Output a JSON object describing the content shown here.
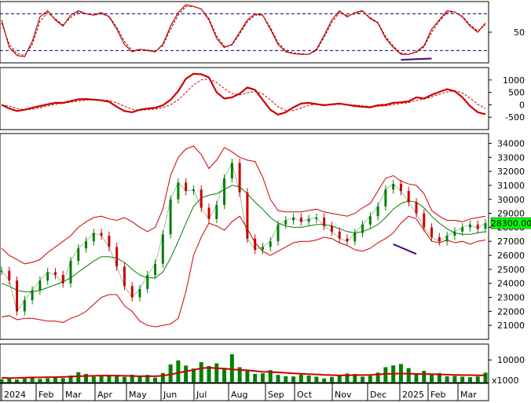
{
  "chart_data": [
    {
      "type": "line",
      "panel": "stochastic",
      "ylim": [
        0,
        100
      ],
      "ticks": [
        "50"
      ],
      "reference_lines": [
        80,
        20
      ],
      "series": [
        {
          "values": [
            70,
            25,
            12,
            10,
            35,
            75,
            85,
            70,
            60,
            78,
            85,
            80,
            78,
            82,
            75,
            55,
            30,
            18,
            22,
            20,
            18,
            30,
            60,
            82,
            95,
            92,
            88,
            70,
            40,
            25,
            30,
            50,
            70,
            80,
            78,
            55,
            30,
            18,
            15,
            14,
            14,
            22,
            45,
            70,
            85,
            75,
            82,
            85,
            72,
            65,
            40,
            25,
            14,
            14,
            18,
            28,
            55,
            70,
            85,
            83,
            75,
            60,
            50,
            65
          ]
        },
        {
          "values": [
            65,
            30,
            15,
            12,
            30,
            68,
            82,
            72,
            62,
            74,
            83,
            80,
            78,
            80,
            76,
            58,
            35,
            20,
            22,
            21,
            19,
            28,
            55,
            78,
            92,
            92,
            88,
            72,
            44,
            27,
            29,
            47,
            67,
            78,
            78,
            58,
            33,
            20,
            16,
            15,
            14,
            20,
            42,
            66,
            82,
            77,
            80,
            84,
            74,
            66,
            43,
            27,
            16,
            14,
            17,
            26,
            50,
            68,
            82,
            83,
            76,
            62,
            52,
            62
          ]
        }
      ],
      "colors": {
        "main": "#cc0000",
        "signal": "#7a0000",
        "ref": "#00008b"
      },
      "annotation": {
        "type": "divergence",
        "color": "#4b0082"
      }
    },
    {
      "type": "line",
      "panel": "macd",
      "ylim": [
        -1000,
        1500
      ],
      "ticks": [
        "1000",
        "500",
        "0",
        "-500"
      ],
      "series": [
        {
          "values": [
            0,
            -150,
            -250,
            -200,
            -120,
            -50,
            20,
            80,
            80,
            150,
            220,
            230,
            210,
            180,
            120,
            -80,
            -250,
            -300,
            -200,
            -150,
            -120,
            -20,
            200,
            550,
            1050,
            1250,
            1230,
            1100,
            500,
            250,
            300,
            450,
            700,
            600,
            200,
            -200,
            -400,
            -300,
            -100,
            50,
            80,
            30,
            -20,
            20,
            50,
            0,
            -50,
            -80,
            -100,
            -20,
            0,
            80,
            100,
            140,
            300,
            250,
            400,
            520,
            630,
            550,
            300,
            -50,
            -300,
            -380
          ]
        },
        {
          "values": [
            0,
            -50,
            -150,
            -200,
            -180,
            -120,
            -40,
            20,
            60,
            100,
            150,
            190,
            205,
            200,
            175,
            80,
            -60,
            -180,
            -220,
            -200,
            -170,
            -110,
            0,
            200,
            500,
            800,
            1000,
            1050,
            900,
            650,
            450,
            400,
            480,
            540,
            440,
            200,
            -80,
            -230,
            -230,
            -130,
            -20,
            20,
            10,
            5,
            15,
            10,
            -10,
            -40,
            -70,
            -60,
            -40,
            10,
            50,
            90,
            180,
            230,
            320,
            420,
            520,
            570,
            480,
            270,
            20,
            -150
          ]
        }
      ],
      "colors": {
        "main": "#cc0000",
        "signal": "#cc0000"
      }
    },
    {
      "type": "line",
      "panel": "price",
      "ylim": [
        20000,
        34700
      ],
      "ticks": [
        "34000",
        "33000",
        "32000",
        "31000",
        "30000",
        "29000",
        "28000",
        "27000",
        "26000",
        "25000",
        "24000",
        "23000",
        "22000",
        "21000"
      ],
      "last_price_label": "28300.00",
      "series": [
        {
          "values": [
            24900,
            24200,
            22000,
            22800,
            23500,
            24200,
            24800,
            24600,
            24000,
            25600,
            26500,
            27000,
            27600,
            27400,
            26600,
            25200,
            23800,
            23000,
            23600,
            24600,
            25400,
            27500,
            30000,
            31200,
            30600,
            30700,
            29400,
            28600,
            29600,
            31500,
            32600,
            30500,
            27200,
            26400,
            26600,
            27000,
            28200,
            28500,
            28700,
            28400,
            28600,
            28700,
            28100,
            27700,
            27200,
            27000,
            27600,
            28200,
            28800,
            29500,
            30700,
            31100,
            30600,
            29800,
            29000,
            28000,
            27300,
            27000,
            27400,
            27700,
            28000,
            28200,
            27900,
            28300
          ]
        },
        {
          "values": [
            24000,
            23800,
            23500,
            23400,
            23400,
            23500,
            23700,
            23900,
            24100,
            24400,
            24800,
            25200,
            25600,
            25900,
            25900,
            25800,
            25500,
            25000,
            24600,
            24400,
            24400,
            24800,
            25800,
            27000,
            28300,
            29500,
            30100,
            30300,
            30400,
            30700,
            31000,
            30900,
            30400,
            29800,
            29300,
            28700,
            28300,
            28100,
            28000,
            28000,
            28100,
            28200,
            28200,
            28100,
            27900,
            27700,
            27600,
            27700,
            27900,
            28200,
            28700,
            29300,
            29700,
            29900,
            29800,
            29400,
            28800,
            28300,
            27900,
            27600,
            27500,
            27500,
            27600,
            27700
          ]
        },
        {
          "values": [
            26500,
            26000,
            25700,
            25400,
            25500,
            25700,
            26200,
            26600,
            27000,
            27400,
            28000,
            28400,
            28700,
            28800,
            28600,
            28500,
            28700,
            28400,
            28000,
            27700,
            28000,
            29300,
            31700,
            33000,
            33600,
            33800,
            33200,
            32200,
            32800,
            33700,
            33400,
            33000,
            32800,
            32700,
            31600,
            30000,
            29200,
            29100,
            29100,
            29100,
            29200,
            29300,
            29100,
            29000,
            28900,
            28800,
            29000,
            29400,
            29700,
            30600,
            31500,
            31700,
            31300,
            31100,
            31000,
            30400,
            29200,
            28800,
            28500,
            28500,
            28400,
            28600,
            28700,
            28800
          ]
        },
        {
          "values": [
            21600,
            21700,
            21400,
            21500,
            21500,
            21400,
            21300,
            21300,
            21200,
            21500,
            21700,
            22000,
            22500,
            23000,
            23200,
            23200,
            22400,
            22000,
            21300,
            21000,
            20900,
            21000,
            21100,
            21500,
            23400,
            26000,
            27300,
            28300,
            28100,
            27800,
            28400,
            28800,
            27900,
            26900,
            26300,
            26000,
            26300,
            26600,
            26900,
            27000,
            27000,
            27100,
            27300,
            27200,
            26900,
            26700,
            26400,
            26300,
            26500,
            26900,
            27200,
            27600,
            28300,
            28800,
            28600,
            27800,
            27000,
            26900,
            27100,
            26900,
            27000,
            26800,
            27000,
            27100
          ]
        }
      ],
      "colors": {
        "close": "#008000",
        "mid": "#008000",
        "band": "#cc0000",
        "label_bg": "#00ff00"
      },
      "annotation": {
        "type": "divergence",
        "color": "#4b0082"
      }
    },
    {
      "type": "bar",
      "panel": "volume",
      "ylim": [
        0,
        17000
      ],
      "ticks": [
        "10000"
      ],
      "unit_label": "x1000",
      "series": [
        {
          "values": [
            1500,
            2100,
            1300,
            1800,
            2200,
            1600,
            1900,
            2400,
            2000,
            3100,
            4600,
            3800,
            2600,
            3300,
            2800,
            2900,
            2500,
            3500,
            2700,
            3400,
            2200,
            4200,
            8000,
            9800,
            7500,
            6200,
            9000,
            7300,
            8500,
            6400,
            12500,
            6800,
            5200,
            3800,
            4100,
            5500,
            3400,
            2800,
            2700,
            3500,
            3100,
            2600,
            1800,
            2500,
            3100,
            4000,
            3800,
            2600,
            3000,
            4400,
            6800,
            7600,
            8200,
            6400,
            3900,
            5200,
            3800,
            4200,
            2800,
            2900,
            2600,
            2400,
            2700,
            4400
          ]
        },
        {
          "values": [
            2100,
            2000,
            2050,
            2200,
            2300,
            2300,
            2400,
            2400,
            2500,
            2600,
            2800,
            2900,
            3000,
            3100,
            3100,
            3100,
            3000,
            2900,
            2800,
            2800,
            2800,
            3000,
            3600,
            4300,
            5000,
            5600,
            6300,
            6600,
            6300,
            6200,
            5800,
            5600,
            5400,
            5100,
            4800,
            4700,
            4500,
            4300,
            4100,
            3900,
            3700,
            3600,
            3400,
            3300,
            3200,
            3200,
            3300,
            3300,
            3400,
            3600,
            3800,
            3900,
            4000,
            3900,
            3800,
            3700,
            3700,
            3600,
            3500,
            3400,
            3300,
            3300,
            3200,
            3200
          ]
        }
      ],
      "colors": {
        "bar": "#008000",
        "ma": "#cc0000"
      }
    }
  ],
  "x_axis": {
    "labels": [
      "2024",
      "Feb",
      "Mar",
      "Apr",
      "May",
      "Jun",
      "Jul",
      "Aug",
      "Sep",
      "Oct",
      "Nov",
      "Dec",
      "2025",
      "Feb",
      "Mar"
    ]
  }
}
